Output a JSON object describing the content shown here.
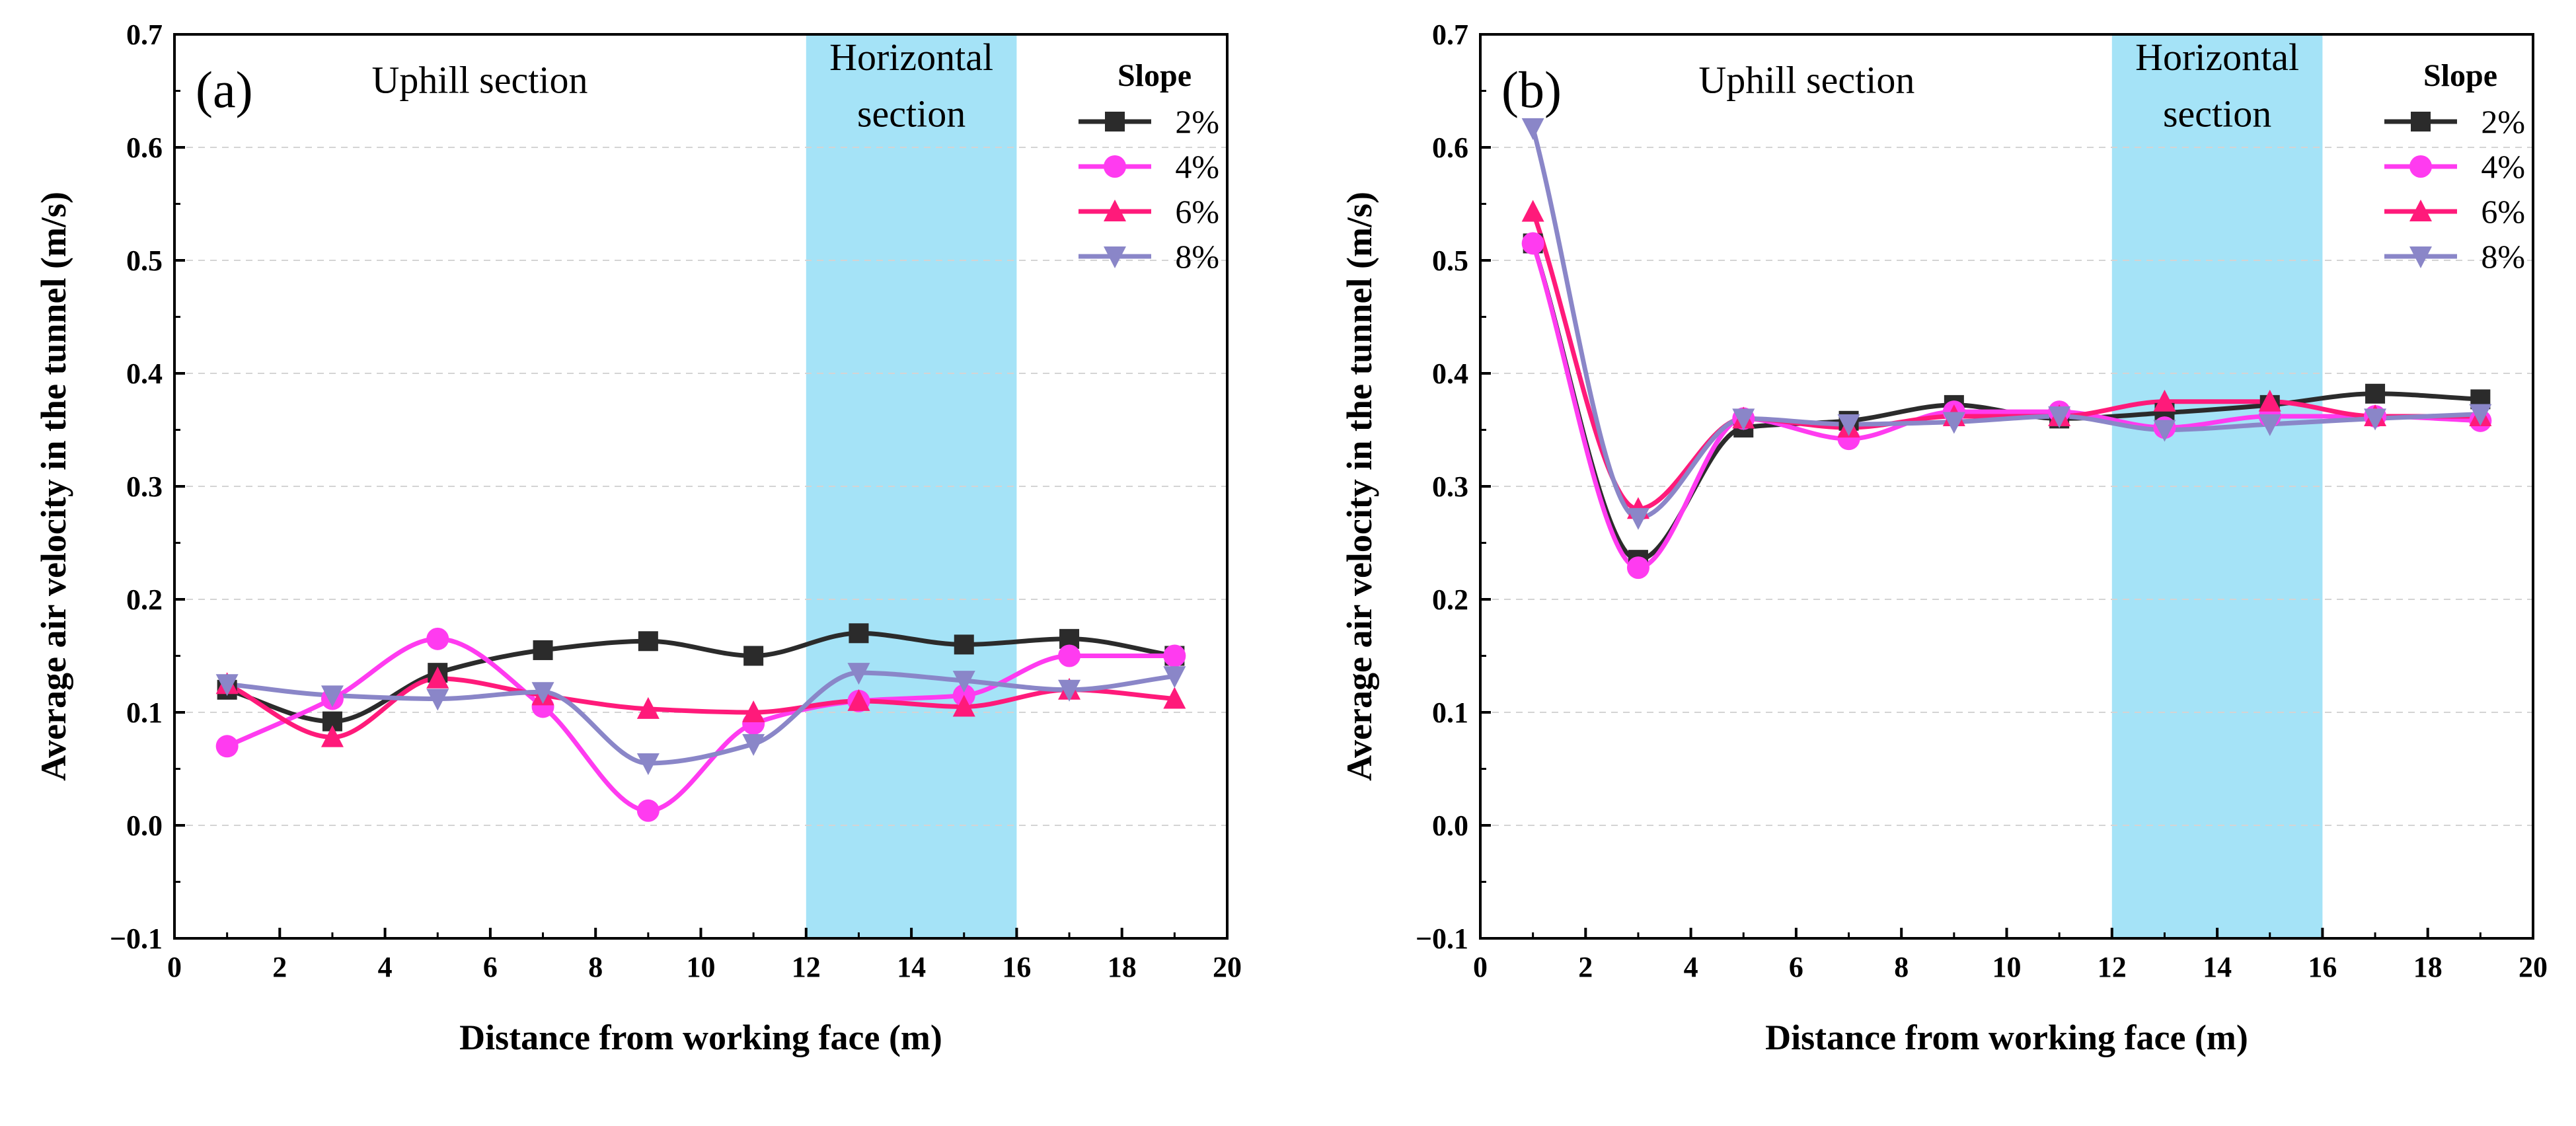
{
  "chart_data": [
    {
      "type": "line",
      "panel_label": "(a)",
      "xlabel": "Distance from working face (m)",
      "ylabel": "Average air velocity in the tunnel (m/s)",
      "xlim": [
        0,
        20
      ],
      "ylim": [
        -0.1,
        0.7
      ],
      "xticks": [
        0,
        2,
        4,
        6,
        8,
        10,
        12,
        14,
        16,
        18,
        20
      ],
      "xtick_labels": [
        "0",
        "2",
        "4",
        "6",
        "8",
        "10",
        "12",
        "14",
        "16",
        "18",
        "20"
      ],
      "yticks": [
        -0.1,
        0.0,
        0.1,
        0.2,
        0.3,
        0.4,
        0.5,
        0.6,
        0.7
      ],
      "ytick_labels": [
        "−0.1",
        "0.0",
        "0.1",
        "0.2",
        "0.3",
        "0.4",
        "0.5",
        "0.6",
        "0.7"
      ],
      "grid": "horizontal dashed",
      "shaded_region": {
        "x": [
          12,
          16
        ],
        "color": "#a5e3f7"
      },
      "annotations": [
        {
          "text": "Uphill section",
          "x": 5.8,
          "y": 0.66
        },
        {
          "text": "Horizontal",
          "x": 14.0,
          "y": 0.68
        },
        {
          "text": "section",
          "x": 14.0,
          "y": 0.63
        }
      ],
      "legend": {
        "title": "Slope",
        "position": "top-right"
      },
      "x": [
        1,
        3,
        5,
        7,
        9,
        11,
        13,
        15,
        17,
        19
      ],
      "series": [
        {
          "name": "2%",
          "color": "#2b2b2b",
          "marker": "square",
          "values": [
            0.12,
            0.092,
            0.135,
            0.155,
            0.163,
            0.15,
            0.17,
            0.16,
            0.165,
            0.15
          ]
        },
        {
          "name": "4%",
          "color": "#ff3bf0",
          "marker": "circle",
          "values": [
            0.07,
            0.112,
            0.165,
            0.105,
            0.013,
            0.09,
            0.11,
            0.115,
            0.15,
            0.15
          ]
        },
        {
          "name": "6%",
          "color": "#ff1a7a",
          "marker": "triangle-up",
          "values": [
            0.125,
            0.078,
            0.13,
            0.115,
            0.103,
            0.1,
            0.11,
            0.105,
            0.12,
            0.112
          ]
        },
        {
          "name": "8%",
          "color": "#8a86c8",
          "marker": "triangle-down",
          "values": [
            0.125,
            0.115,
            0.112,
            0.118,
            0.055,
            0.072,
            0.135,
            0.128,
            0.12,
            0.132
          ]
        }
      ]
    },
    {
      "type": "line",
      "panel_label": "(b)",
      "xlabel": "Distance from working face (m)",
      "ylabel": "Average air velocity in the tunnel (m/s)",
      "xlim": [
        0,
        20
      ],
      "ylim": [
        -0.1,
        0.7
      ],
      "xticks": [
        0,
        2,
        4,
        6,
        8,
        10,
        12,
        14,
        16,
        18,
        20
      ],
      "xtick_labels": [
        "0",
        "2",
        "4",
        "6",
        "8",
        "10",
        "12",
        "14",
        "16",
        "18",
        "20"
      ],
      "yticks": [
        -0.1,
        0.0,
        0.1,
        0.2,
        0.3,
        0.4,
        0.5,
        0.6,
        0.7
      ],
      "ytick_labels": [
        "−0.1",
        "0.0",
        "0.1",
        "0.2",
        "0.3",
        "0.4",
        "0.5",
        "0.6",
        "0.7"
      ],
      "grid": "horizontal dashed",
      "shaded_region": {
        "x": [
          12,
          16
        ],
        "color": "#a5e3f7"
      },
      "annotations": [
        {
          "text": "Uphill section",
          "x": 6.2,
          "y": 0.66
        },
        {
          "text": "Horizontal",
          "x": 14.0,
          "y": 0.68
        },
        {
          "text": "section",
          "x": 14.0,
          "y": 0.63
        }
      ],
      "legend": {
        "title": "Slope",
        "position": "top-right"
      },
      "x": [
        1,
        3,
        5,
        7,
        9,
        11,
        13,
        15,
        17,
        19
      ],
      "series": [
        {
          "name": "2%",
          "color": "#2b2b2b",
          "marker": "square",
          "values": [
            0.515,
            0.235,
            0.352,
            0.358,
            0.372,
            0.36,
            0.365,
            0.372,
            0.382,
            0.377
          ]
        },
        {
          "name": "4%",
          "color": "#ff3bf0",
          "marker": "circle",
          "values": [
            0.515,
            0.228,
            0.36,
            0.342,
            0.366,
            0.366,
            0.352,
            0.362,
            0.362,
            0.358
          ]
        },
        {
          "name": "6%",
          "color": "#ff1a7a",
          "marker": "triangle-up",
          "values": [
            0.543,
            0.28,
            0.36,
            0.352,
            0.362,
            0.362,
            0.375,
            0.375,
            0.362,
            0.362
          ]
        },
        {
          "name": "8%",
          "color": "#8a86c8",
          "marker": "triangle-down",
          "values": [
            0.617,
            0.272,
            0.36,
            0.355,
            0.357,
            0.362,
            0.35,
            0.355,
            0.36,
            0.364
          ]
        }
      ]
    }
  ]
}
